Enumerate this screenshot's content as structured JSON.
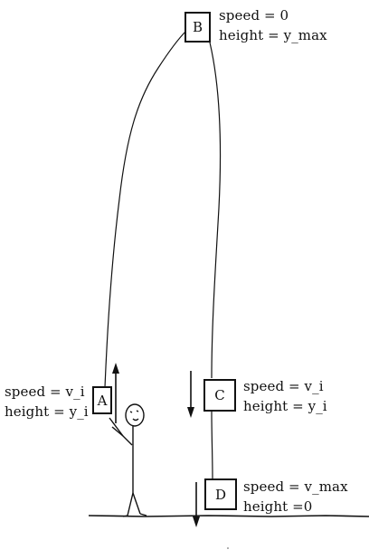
{
  "boxes": [
    {
      "id": "A",
      "text": "A"
    },
    {
      "id": "B",
      "text": "B"
    },
    {
      "id": "C",
      "text": "C"
    },
    {
      "id": "D",
      "text": "D"
    }
  ],
  "labels": {
    "A": {
      "speed": "speed = v_i",
      "height": "height = y_i"
    },
    "B": {
      "speed": "speed = 0",
      "height": "height = y_max"
    },
    "C": {
      "speed": "speed = v_i",
      "height": "height = y_i"
    },
    "D": {
      "speed": "speed = v_max",
      "height": "height =0"
    }
  },
  "colors": {
    "ink": "#111111",
    "background": "#ffffff"
  }
}
